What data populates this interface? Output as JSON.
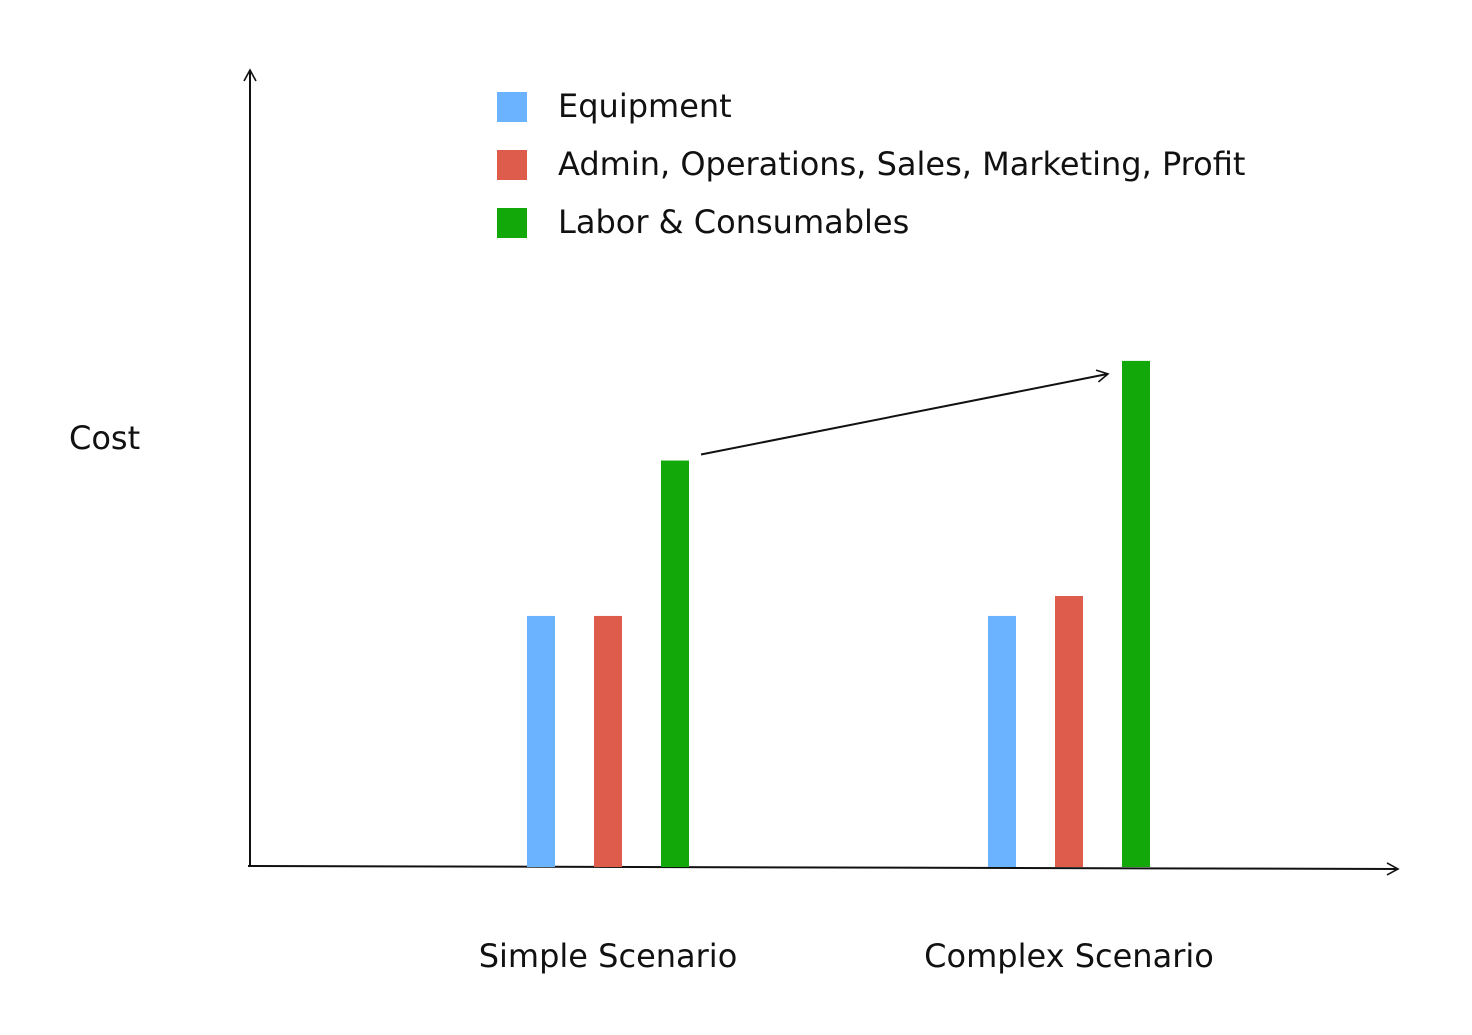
{
  "chart_data": {
    "type": "bar",
    "y_label": "Cost",
    "categories": [
      "Simple Scenario",
      "Complex Scenario"
    ],
    "series": [
      {
        "name": "Equipment",
        "color": "#6bb3ff",
        "values": [
          31.5,
          31.5
        ]
      },
      {
        "name": "Admin, Operations, Sales, Marketing, Profit",
        "color": "#dd5c4c",
        "values": [
          31.5,
          34
        ]
      },
      {
        "name": "Labor & Consumables",
        "color": "#12a80a",
        "values": [
          51,
          63.5
        ]
      }
    ],
    "ylim": [
      0,
      100
    ],
    "legend": "top"
  }
}
